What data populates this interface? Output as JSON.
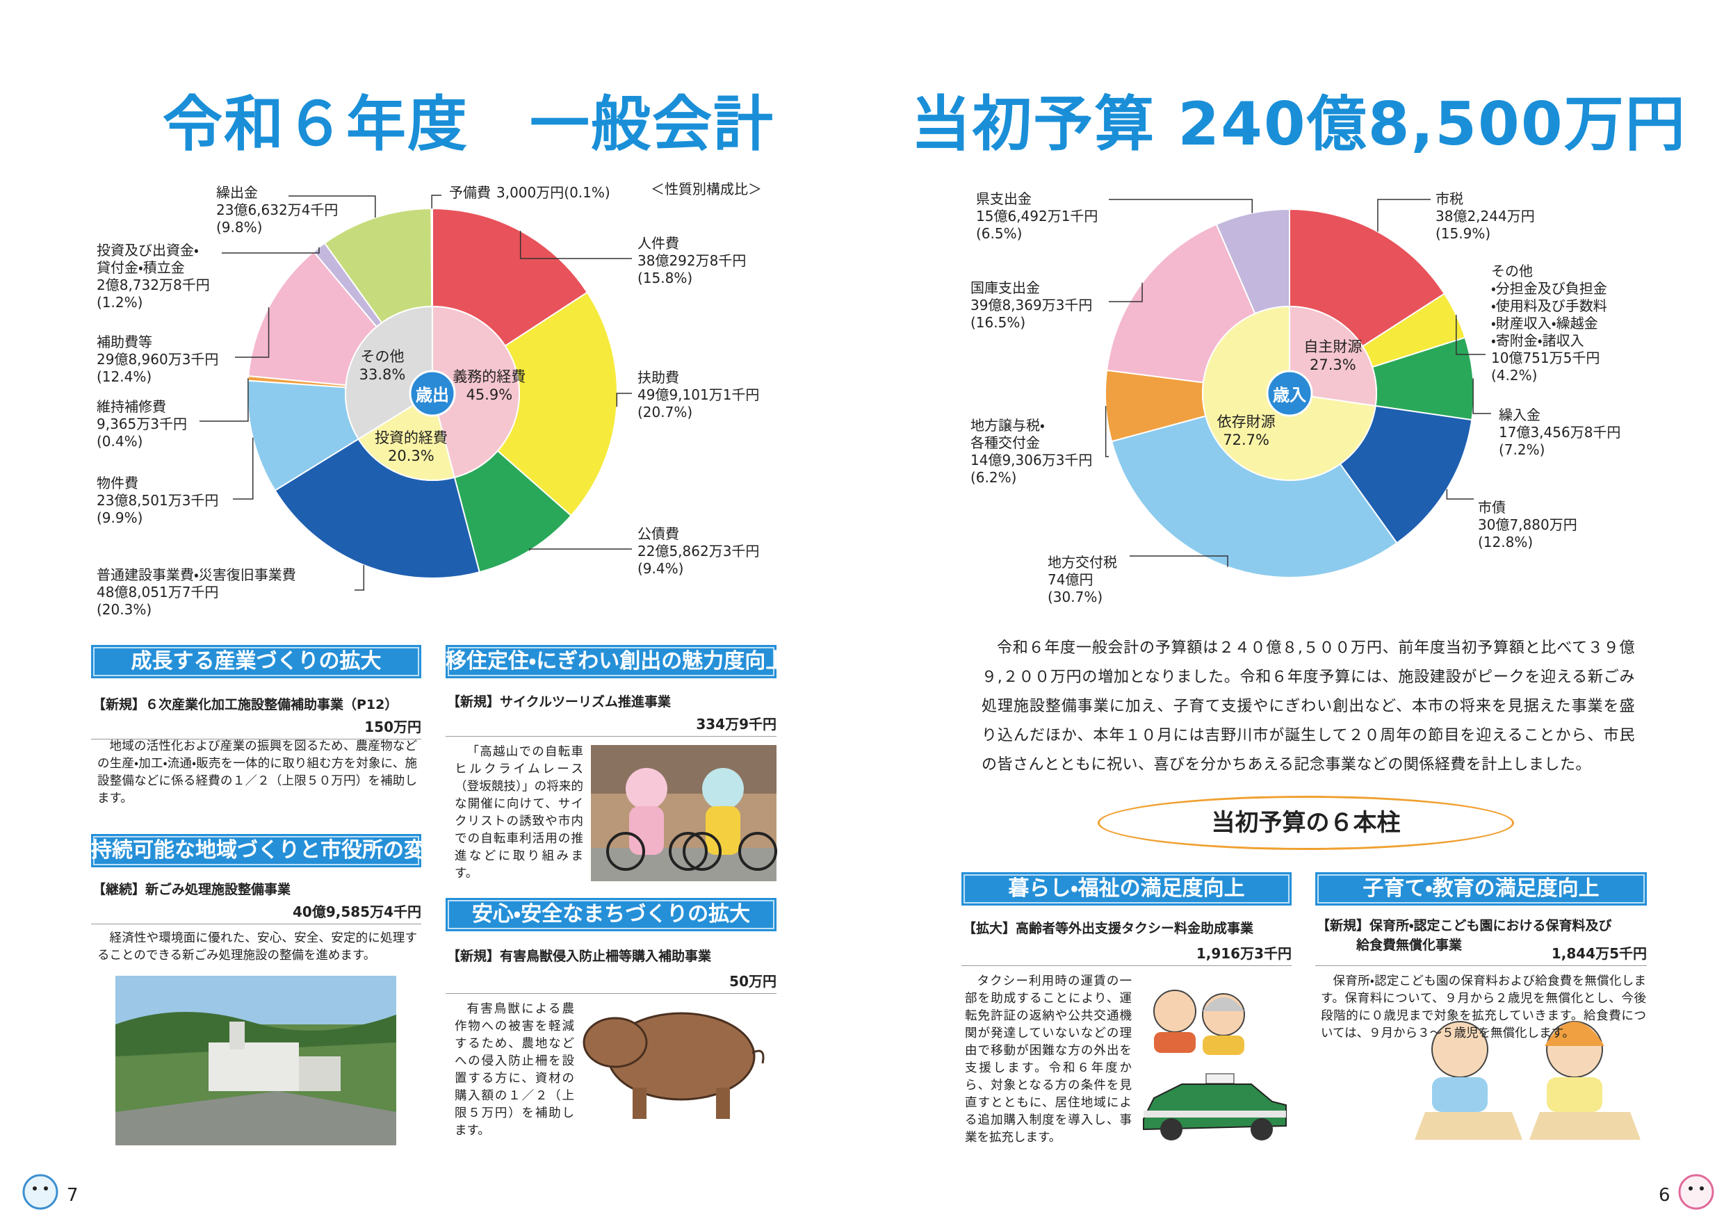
{
  "header": {
    "left_title": "令和６年度　一般会計",
    "right_title": "当初予算 240億8,500万円"
  },
  "chart_data": [
    {
      "type": "pie",
      "center_label": "歳出",
      "note": "＜性質別構成比＞",
      "categories": [
        "人件費",
        "扶助費",
        "公債費",
        "普通建設事業費・災害復旧事業費",
        "物件費",
        "維持補修費",
        "補助費等",
        "投資及び出資金・\n貸付金・積立金",
        "繰出金",
        "予備費"
      ],
      "amounts": [
        "38億292万8千円",
        "49億9,101万1千円",
        "22億5,862万3千円",
        "48億8,051万7千円",
        "23億8,501万3千円",
        "9,365万3千円",
        "29億8,960万3千円",
        "2億8,732万8千円",
        "23億6,632万4千円",
        "3,000万円"
      ],
      "values": [
        15.8,
        20.7,
        9.4,
        20.3,
        9.9,
        0.4,
        12.4,
        1.2,
        9.8,
        0.1
      ],
      "value_labels": [
        "(15.8%)",
        "(20.7%)",
        "(9.4%)",
        "(20.3%)",
        "(9.9%)",
        "(0.4%)",
        "(12.4%)",
        "(1.2%)",
        "(9.8%)",
        "(0.1%)"
      ],
      "colors": [
        "#e8525a",
        "#f6ea3c",
        "#2aa85a",
        "#1e5fb0",
        "#8ccbee",
        "#f0a040",
        "#f4b8cf",
        "#c3b7dd",
        "#c6dc7c",
        "#f4f4f4"
      ],
      "inner": {
        "categories": [
          "義務的経費",
          "投資的経費",
          "その他"
        ],
        "values": [
          45.9,
          20.3,
          33.8
        ],
        "value_labels": [
          "45.9%",
          "20.3%",
          "33.8%"
        ],
        "colors": [
          "#f5c6d0",
          "#faf4a6",
          "#dcdcdc"
        ]
      }
    },
    {
      "type": "pie",
      "center_label": "歳入",
      "categories": [
        "市税",
        "その他\n・分担金及び負担金\n・使用料及び手数料\n・財産収入・繰越金\n・寄附金・諸収入",
        "繰入金",
        "市債",
        "地方交付税",
        "地方譲与税・\n各種交付金",
        "国庫支出金",
        "県支出金"
      ],
      "amounts": [
        "38億2,244万円",
        "10億751万5千円",
        "17億3,456万8千円",
        "30億7,880万円",
        "74億円",
        "14億9,306万3千円",
        "39億8,369万3千円",
        "15億6,492万1千円"
      ],
      "values": [
        15.9,
        4.2,
        7.2,
        12.8,
        30.7,
        6.2,
        16.5,
        6.5
      ],
      "value_labels": [
        "(15.9%)",
        "(4.2%)",
        "(7.2%)",
        "(12.8%)",
        "(30.7%)",
        "(6.2%)",
        "(16.5%)",
        "(6.5%)"
      ],
      "colors": [
        "#e8525a",
        "#f6ea3c",
        "#2aa85a",
        "#1e5fb0",
        "#8ccbee",
        "#f0a040",
        "#f4b8cf",
        "#c3b7dd"
      ],
      "inner": {
        "categories": [
          "自主財源",
          "依存財源"
        ],
        "values": [
          27.3,
          72.7
        ],
        "value_labels": [
          "27.3%",
          "72.7%"
        ],
        "colors": [
          "#f5c6d0",
          "#faf4a6"
        ]
      }
    }
  ],
  "sections": [
    {
      "heading": "成長する産業づくりの拡大",
      "item": "【新規】６次産業化加工施設整備補助事業（P12）",
      "amount": "150万円",
      "body": "地域の活性化および産業の振興を図るため、農産物などの生産・加工・流通・販売を一体的に取り組む方を対象に、施設整備などに係る経費の１／２（上限５０万円）を補助します。"
    },
    {
      "heading": "持続可能な地域づくりと市役所の変革",
      "item": "【継続】新ごみ処理施設整備事業",
      "amount": "40億9,585万4千円",
      "body": "経済性や環境面に優れた、安心、安全、安定的に処理することのできる新ごみ処理施設の整備を進めます。"
    },
    {
      "heading": "移住定住・にぎわい創出の魅力度向上",
      "item": "【新規】サイクルツーリズム推進事業",
      "amount": "334万9千円",
      "body": "「高越山での自転車ヒルクライムレース（登坂競技）」の将来的な開催に向けて、サイクリストの誘致や市内での自転車利活用の推進などに取り組みます。"
    },
    {
      "heading": "安心・安全なまちづくりの拡大",
      "item": "【新規】有害鳥獣侵入防止柵等購入補助事業",
      "amount": "50万円",
      "body": "有害鳥獣による農作物への被害を軽減するため、農地などへの侵入防止柵を設置する方に、資材の購入額の１／２（上限５万円）を補助します。"
    },
    {
      "heading": "暮らし・福祉の満足度向上",
      "item": "【拡大】高齢者等外出支援タクシー料金助成事業",
      "amount": "1,916万3千円",
      "body": "タクシー利用時の運賃の一部を助成することにより、運転免許証の返納や公共交通機関が発達していないなどの理由で移動が困難な方の外出を支援します。令和６年度から、対象となる方の条件を見直すとともに、居住地域による追加購入制度を導入し、事業を拡充します。"
    },
    {
      "heading": "子育て・教育の満足度向上",
      "item": "【新規】保育所・認定こども園における保育料及び\n　　　給食費無償化事業",
      "amount": "1,844万5千円",
      "body": "保育所・認定こども園の保育料および給食費を無償化します。保育料について、９月から２歳児を無償化とし、今後段階的に０歳児まで対象を拡充していきます。給食費については、９月から３～５歳児を無償化します。"
    }
  ],
  "intro": "令和６年度一般会計の予算額は２４０億８,５００万円、前年度当初予算額と比べて３９億９,２００万円の増加となりました。令和６年度予算には、施設建設がピークを迎える新ごみ処理施設整備事業に加え、子育て支援やにぎわい創出など、本市の将来を見据えた事業を盛り込んだほか、本年１０月には吉野川市が誕生して２０周年の節目を迎えることから、市民の皆さんとともに祝い、喜びを分かちあえる記念事業などの関係経費を計上しました。",
  "pillars_title": "当初予算の６本柱",
  "page_numbers": [
    "7",
    "6"
  ]
}
